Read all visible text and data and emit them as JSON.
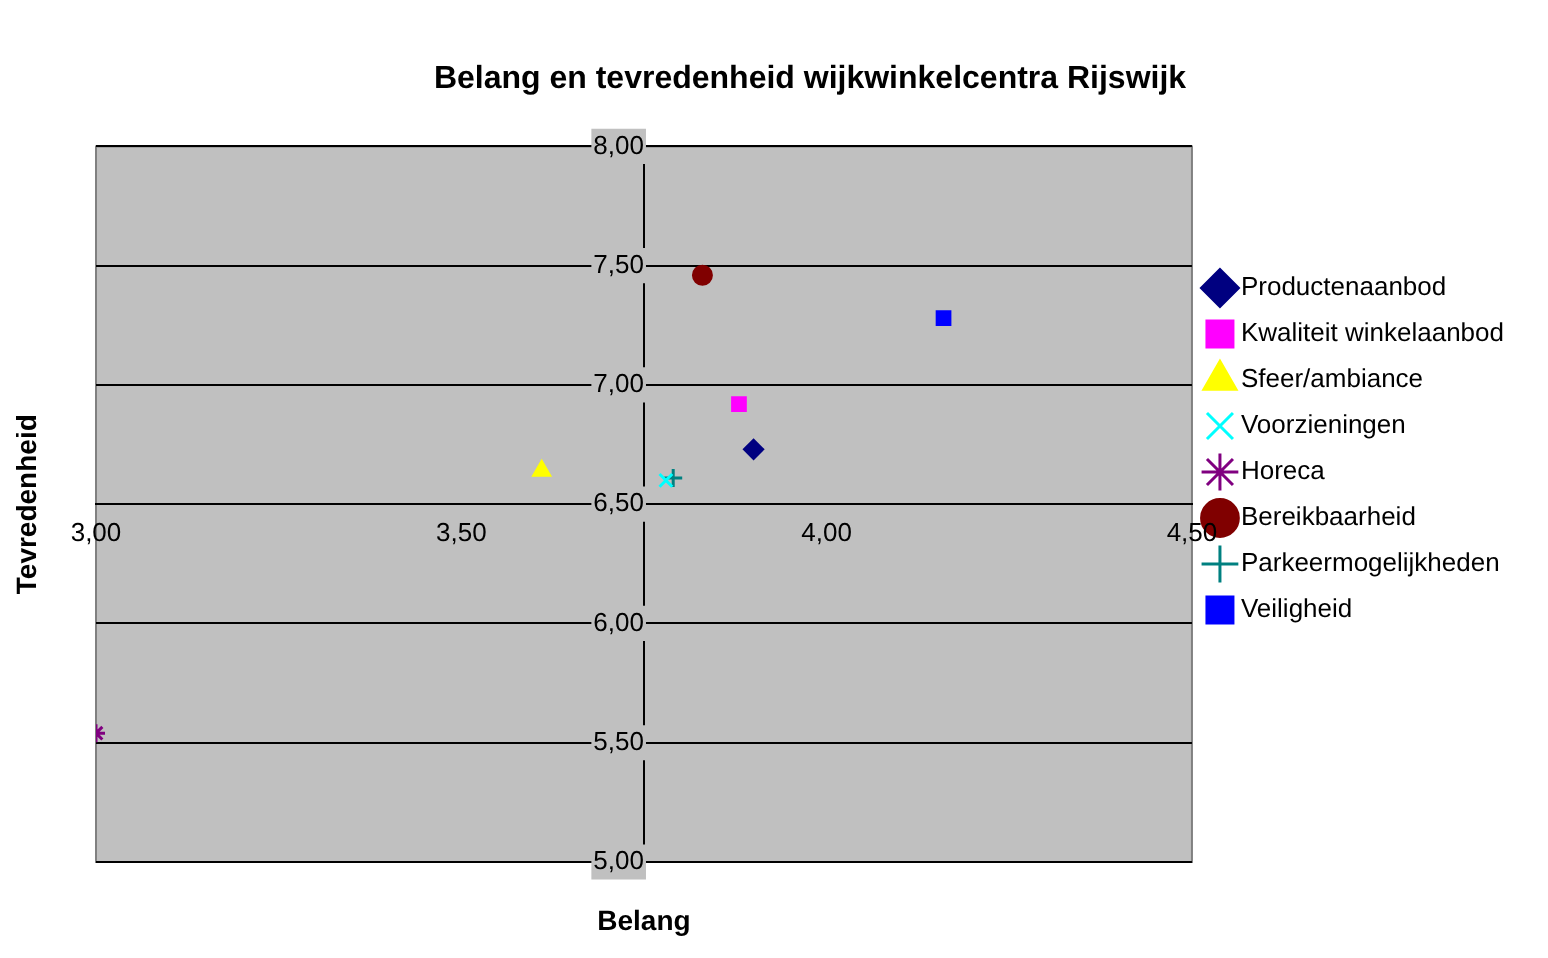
{
  "chart_data": {
    "type": "scatter",
    "title": "Belang en tevredenheid wijkwinkelcentra Rijswijk",
    "xlabel": "Belang",
    "ylabel": "Tevredenheid",
    "xlim": [
      3,
      4.5
    ],
    "xticks": [
      {
        "value": 3,
        "label": "3,00"
      },
      {
        "value": 3.5,
        "label": "3,50"
      },
      {
        "value": 4,
        "label": "4,00"
      },
      {
        "value": 4.5,
        "label": "4,50"
      }
    ],
    "ylim": [
      5,
      8
    ],
    "yticks": [
      {
        "value": 5,
        "label": "5,00"
      },
      {
        "value": 5.5,
        "label": "5,50"
      },
      {
        "value": 6,
        "label": "6,00"
      },
      {
        "value": 6.5,
        "label": "6,50"
      },
      {
        "value": 7,
        "label": "7,00"
      },
      {
        "value": 7.5,
        "label": "7,50"
      },
      {
        "value": 8,
        "label": "8,00"
      }
    ],
    "grid": "y",
    "legend": "right",
    "series": [
      {
        "name": "Productenaanbod",
        "color": "#000080",
        "marker": "diamond",
        "x": [
          3.9
        ],
        "values": [
          6.73
        ]
      },
      {
        "name": "Kwaliteit winkelaanbod",
        "color": "#ff00ff",
        "marker": "square",
        "x": [
          3.88
        ],
        "values": [
          6.92
        ]
      },
      {
        "name": "Sfeer/ambiance",
        "color": "#ffff00",
        "marker": "triangle",
        "x": [
          3.61
        ],
        "values": [
          6.64
        ]
      },
      {
        "name": "Voorzieningen",
        "color": "#00ffff",
        "marker": "x",
        "x": [
          3.78
        ],
        "values": [
          6.6
        ]
      },
      {
        "name": "Horeca",
        "color": "#800080",
        "marker": "cross",
        "x": [
          3.0
        ],
        "values": [
          5.54
        ]
      },
      {
        "name": "Bereikbaarheid",
        "color": "#800000",
        "marker": "circle",
        "x": [
          3.83
        ],
        "values": [
          7.46
        ]
      },
      {
        "name": "Parkeermogelijkheden",
        "color": "#008080",
        "marker": "plus",
        "x": [
          3.79
        ],
        "values": [
          6.61
        ]
      },
      {
        "name": "Veiligheid",
        "color": "#0000ff",
        "marker": "square",
        "x": [
          4.16
        ],
        "values": [
          7.28
        ]
      }
    ]
  }
}
